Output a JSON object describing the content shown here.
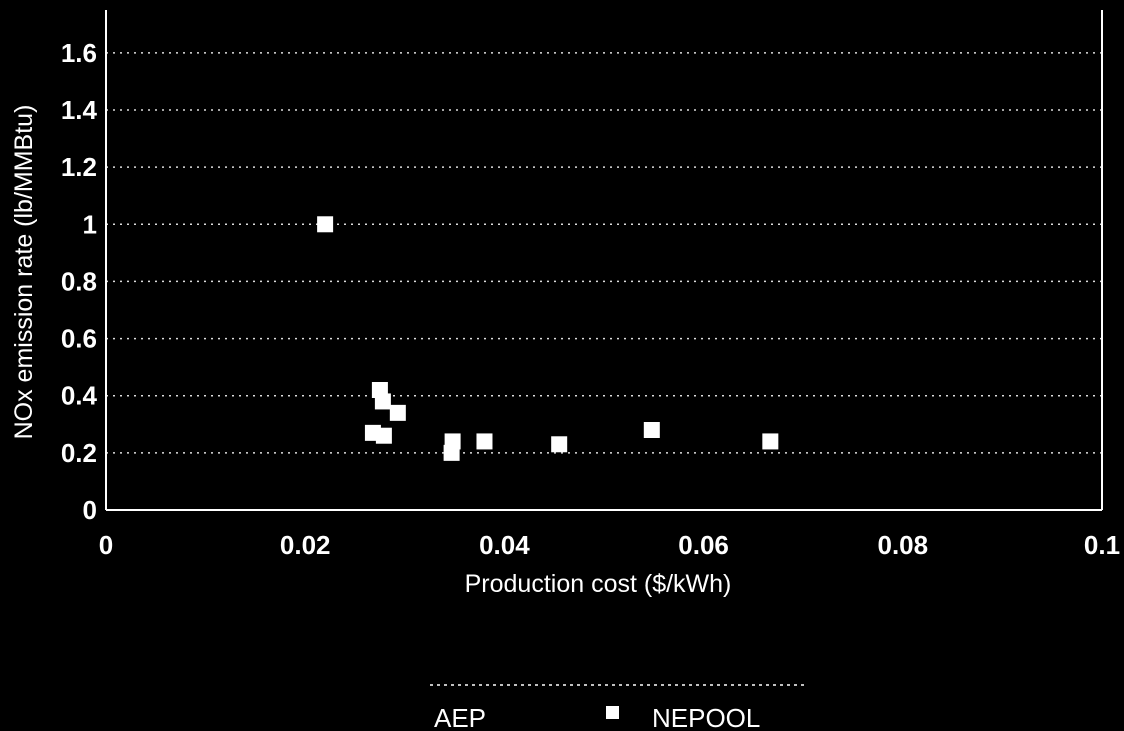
{
  "chart_data": {
    "type": "scatter",
    "xlabel": "Production cost ($/kWh)",
    "ylabel": "NOx emission rate (lb/MMBtu)",
    "xlim": [
      0,
      0.1
    ],
    "ylim": [
      0,
      1.75
    ],
    "x_ticks": [
      "0",
      "0.02",
      "0.04",
      "0.06",
      "0.08",
      "0.1"
    ],
    "x_tick_values": [
      0,
      0.02,
      0.04,
      0.06,
      0.08,
      0.1
    ],
    "y_ticks": [
      "0",
      "0.2",
      "0.4",
      "0.6",
      "0.8",
      "1",
      "1.2",
      "1.4",
      "1.6"
    ],
    "y_tick_values": [
      0,
      0.2,
      0.4,
      0.6,
      0.8,
      1.0,
      1.2,
      1.4,
      1.6
    ],
    "grid": "horizontal dotted",
    "legend_position": "bottom",
    "series": [
      {
        "name": "AEP",
        "marker": "none",
        "color": "#ffffff",
        "points": []
      },
      {
        "name": "NEPOOL",
        "marker": "square",
        "color": "#ffffff",
        "points": [
          {
            "x": 0.022,
            "y": 1.0
          },
          {
            "x": 0.0275,
            "y": 0.42
          },
          {
            "x": 0.0278,
            "y": 0.38
          },
          {
            "x": 0.0293,
            "y": 0.34
          },
          {
            "x": 0.0268,
            "y": 0.27
          },
          {
            "x": 0.0279,
            "y": 0.26
          },
          {
            "x": 0.0348,
            "y": 0.24
          },
          {
            "x": 0.0347,
            "y": 0.2
          },
          {
            "x": 0.038,
            "y": 0.24
          },
          {
            "x": 0.0455,
            "y": 0.23
          },
          {
            "x": 0.0548,
            "y": 0.28
          },
          {
            "x": 0.0667,
            "y": 0.24
          }
        ]
      }
    ]
  }
}
